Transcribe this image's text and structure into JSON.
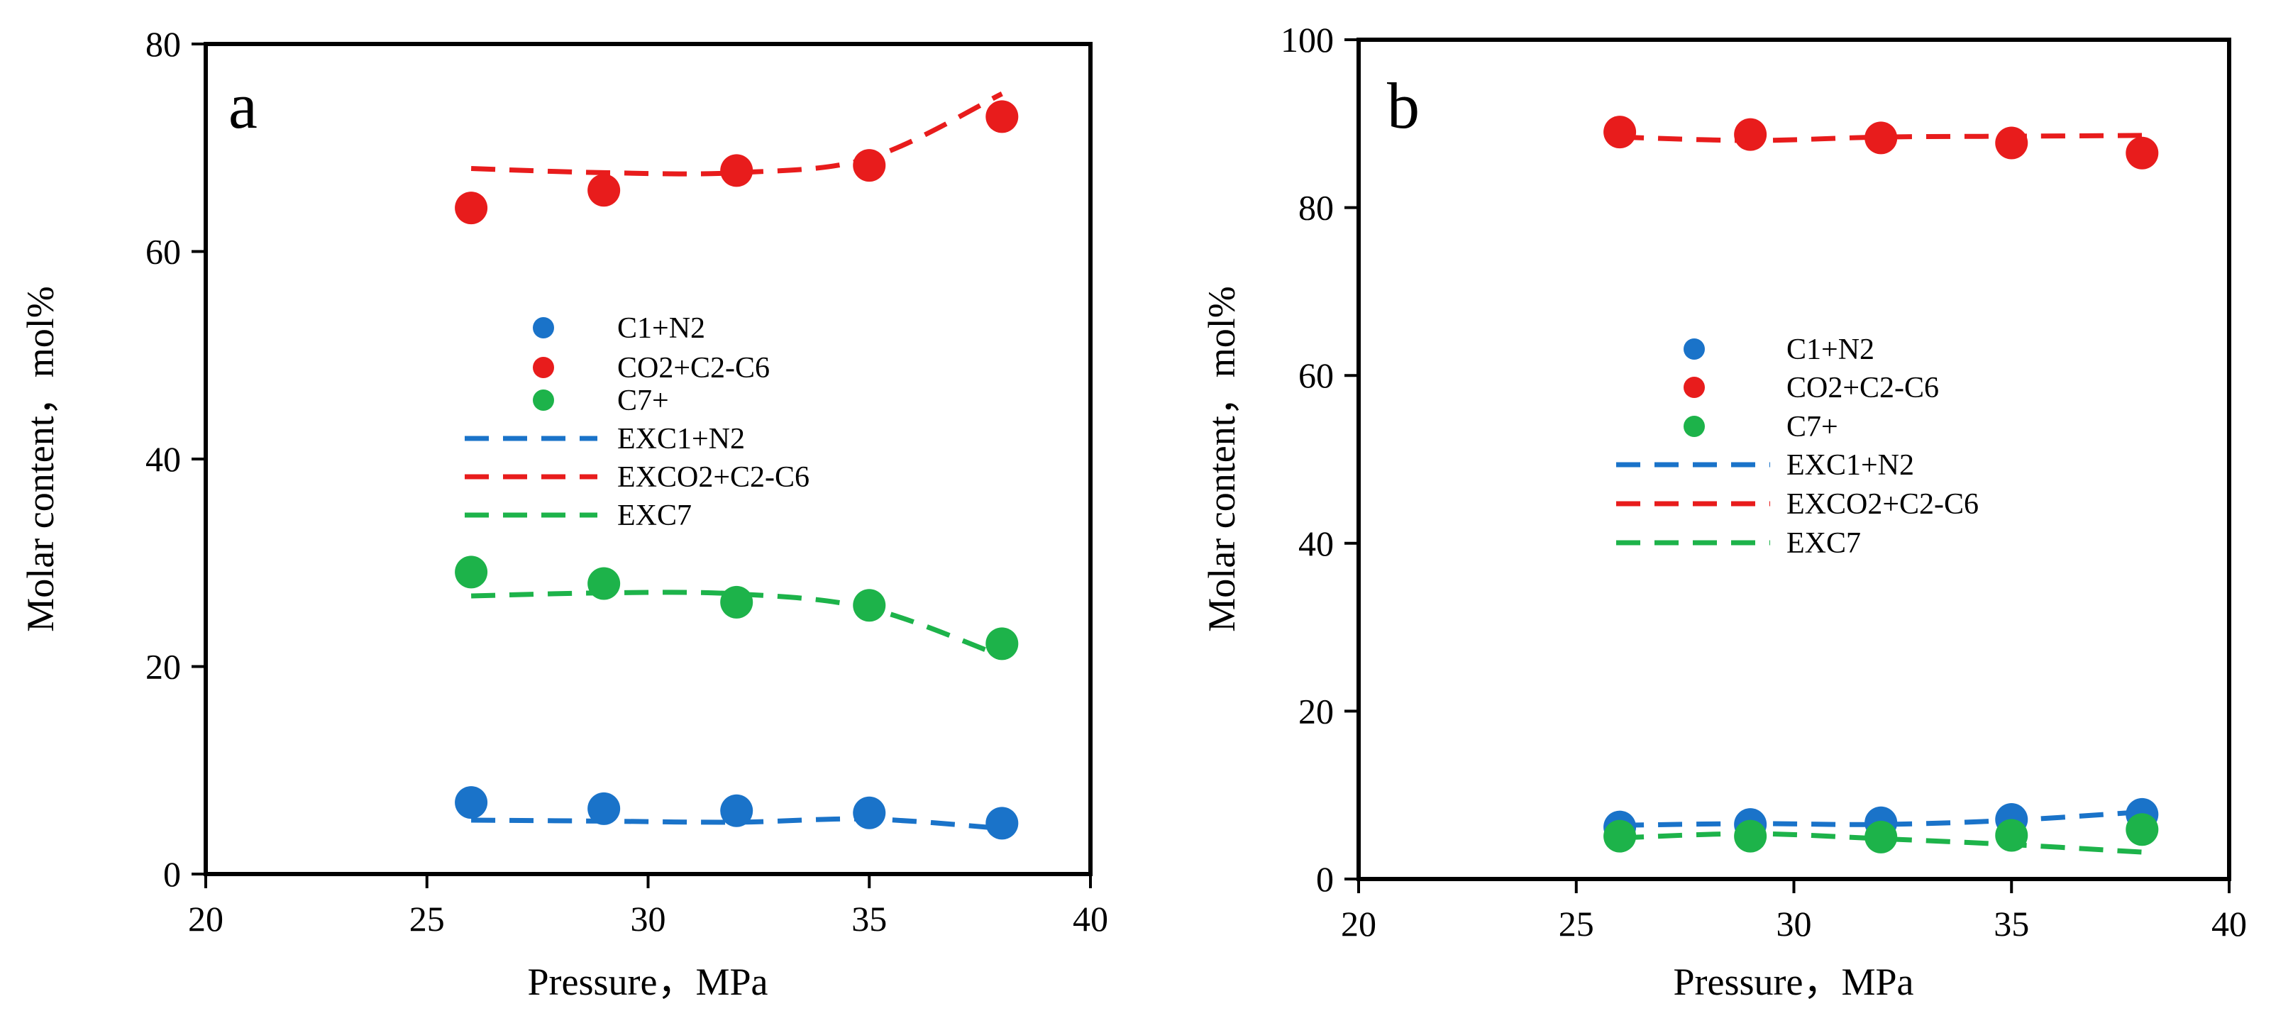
{
  "chart_data": [
    {
      "type": "scatter",
      "panel_label": "a",
      "xlabel": "Pressure，MPa",
      "ylabel": "Molar content，mol%",
      "xlim": [
        20,
        40
      ],
      "ylim": [
        0,
        80
      ],
      "xticks": [
        "20",
        "25",
        "30",
        "35",
        "40"
      ],
      "yticks": [
        "0",
        "20",
        "40",
        "60",
        "80"
      ],
      "x": [
        26,
        29,
        32,
        35,
        38
      ],
      "series": [
        {
          "name": "C1+N2",
          "kind": "points",
          "color": "#1a73c9",
          "values": [
            6.9,
            6.3,
            6.1,
            5.9,
            4.9
          ]
        },
        {
          "name": "CO2+C2-C6",
          "kind": "points",
          "color": "#e81c1c",
          "values": [
            64.2,
            65.9,
            67.8,
            68.3,
            73.0
          ]
        },
        {
          "name": "C7+",
          "kind": "points",
          "color": "#1db34a",
          "values": [
            29.1,
            28.0,
            26.2,
            25.9,
            22.2
          ]
        },
        {
          "name": "EXC1+N2",
          "kind": "dashed",
          "color": "#1a73c9",
          "values": [
            5.2,
            5.1,
            5.0,
            5.3,
            4.4
          ]
        },
        {
          "name": "EXCO2+C2-C6",
          "kind": "dashed",
          "color": "#e81c1c",
          "values": [
            68.0,
            67.6,
            67.6,
            69.0,
            75.2
          ]
        },
        {
          "name": "EXC7",
          "kind": "dashed",
          "color": "#1db34a",
          "values": [
            26.8,
            27.1,
            27.0,
            25.6,
            21.0
          ]
        }
      ]
    },
    {
      "type": "scatter",
      "panel_label": "b",
      "xlabel": "Pressure，MPa",
      "ylabel": "Molar content，mol%",
      "xlim": [
        20,
        40
      ],
      "ylim": [
        0,
        100
      ],
      "xticks": [
        "20",
        "25",
        "30",
        "35",
        "40"
      ],
      "yticks": [
        "0",
        "20",
        "40",
        "60",
        "80",
        "100"
      ],
      "x": [
        26,
        29,
        32,
        35,
        38
      ],
      "series": [
        {
          "name": "C1+N2",
          "kind": "points",
          "color": "#1a73c9",
          "values": [
            6.2,
            6.5,
            6.7,
            7.1,
            7.7
          ]
        },
        {
          "name": "CO2+C2-C6",
          "kind": "points",
          "color": "#e81c1c",
          "values": [
            89.0,
            88.7,
            88.3,
            87.7,
            86.5
          ]
        },
        {
          "name": "C7+",
          "kind": "points",
          "color": "#1db34a",
          "values": [
            5.1,
            5.1,
            5.0,
            5.2,
            5.9
          ]
        },
        {
          "name": "EXC1+N2",
          "kind": "dashed",
          "color": "#1a73c9",
          "values": [
            6.4,
            6.6,
            6.5,
            7.0,
            8.0
          ]
        },
        {
          "name": "EXCO2+C2-C6",
          "kind": "dashed",
          "color": "#e81c1c",
          "values": [
            88.4,
            88.0,
            88.4,
            88.5,
            88.6
          ]
        },
        {
          "name": "EXC7",
          "kind": "dashed",
          "color": "#1db34a",
          "values": [
            4.9,
            5.4,
            4.8,
            4.1,
            3.2
          ]
        }
      ]
    }
  ]
}
